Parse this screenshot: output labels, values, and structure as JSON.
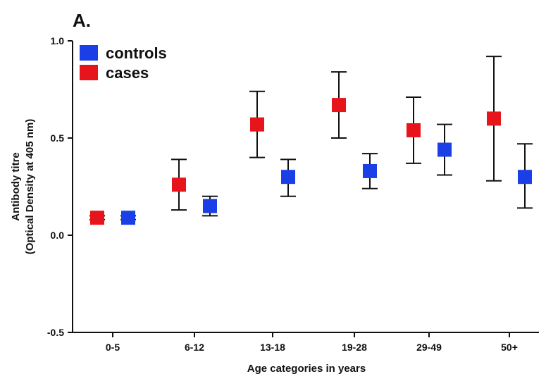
{
  "chart_data": {
    "type": "scatter",
    "panel_label": "A.",
    "title": "",
    "xlabel": "Age categories in years",
    "ylabel_line1": "Antibody titre",
    "ylabel_line2": "(Optical Density at  405 nm)",
    "ylim": [
      -0.5,
      1.0
    ],
    "yticks": [
      -0.5,
      0.0,
      0.5,
      1.0
    ],
    "ytick_labels": [
      "-0.5",
      "0.0",
      "0.5",
      "1.0"
    ],
    "categories": [
      "0-5",
      "6-12",
      "13-18",
      "19-28",
      "29-49",
      "50+"
    ],
    "legend_position": "top-left",
    "series": [
      {
        "name": "cases",
        "color": "#e8141b",
        "marker": "square",
        "values": [
          0.09,
          0.26,
          0.57,
          0.67,
          0.54,
          0.6
        ],
        "err_low": [
          0.08,
          0.13,
          0.4,
          0.5,
          0.37,
          0.28
        ],
        "err_high": [
          0.1,
          0.39,
          0.74,
          0.84,
          0.71,
          0.92
        ]
      },
      {
        "name": "controls",
        "color": "#1a3fe6",
        "marker": "square",
        "values": [
          0.09,
          0.15,
          0.3,
          0.33,
          0.44,
          0.3
        ],
        "err_low": [
          0.08,
          0.1,
          0.2,
          0.24,
          0.31,
          0.14
        ],
        "err_high": [
          0.1,
          0.2,
          0.39,
          0.42,
          0.57,
          0.47
        ]
      }
    ],
    "legend_order": [
      "controls",
      "cases"
    ]
  }
}
